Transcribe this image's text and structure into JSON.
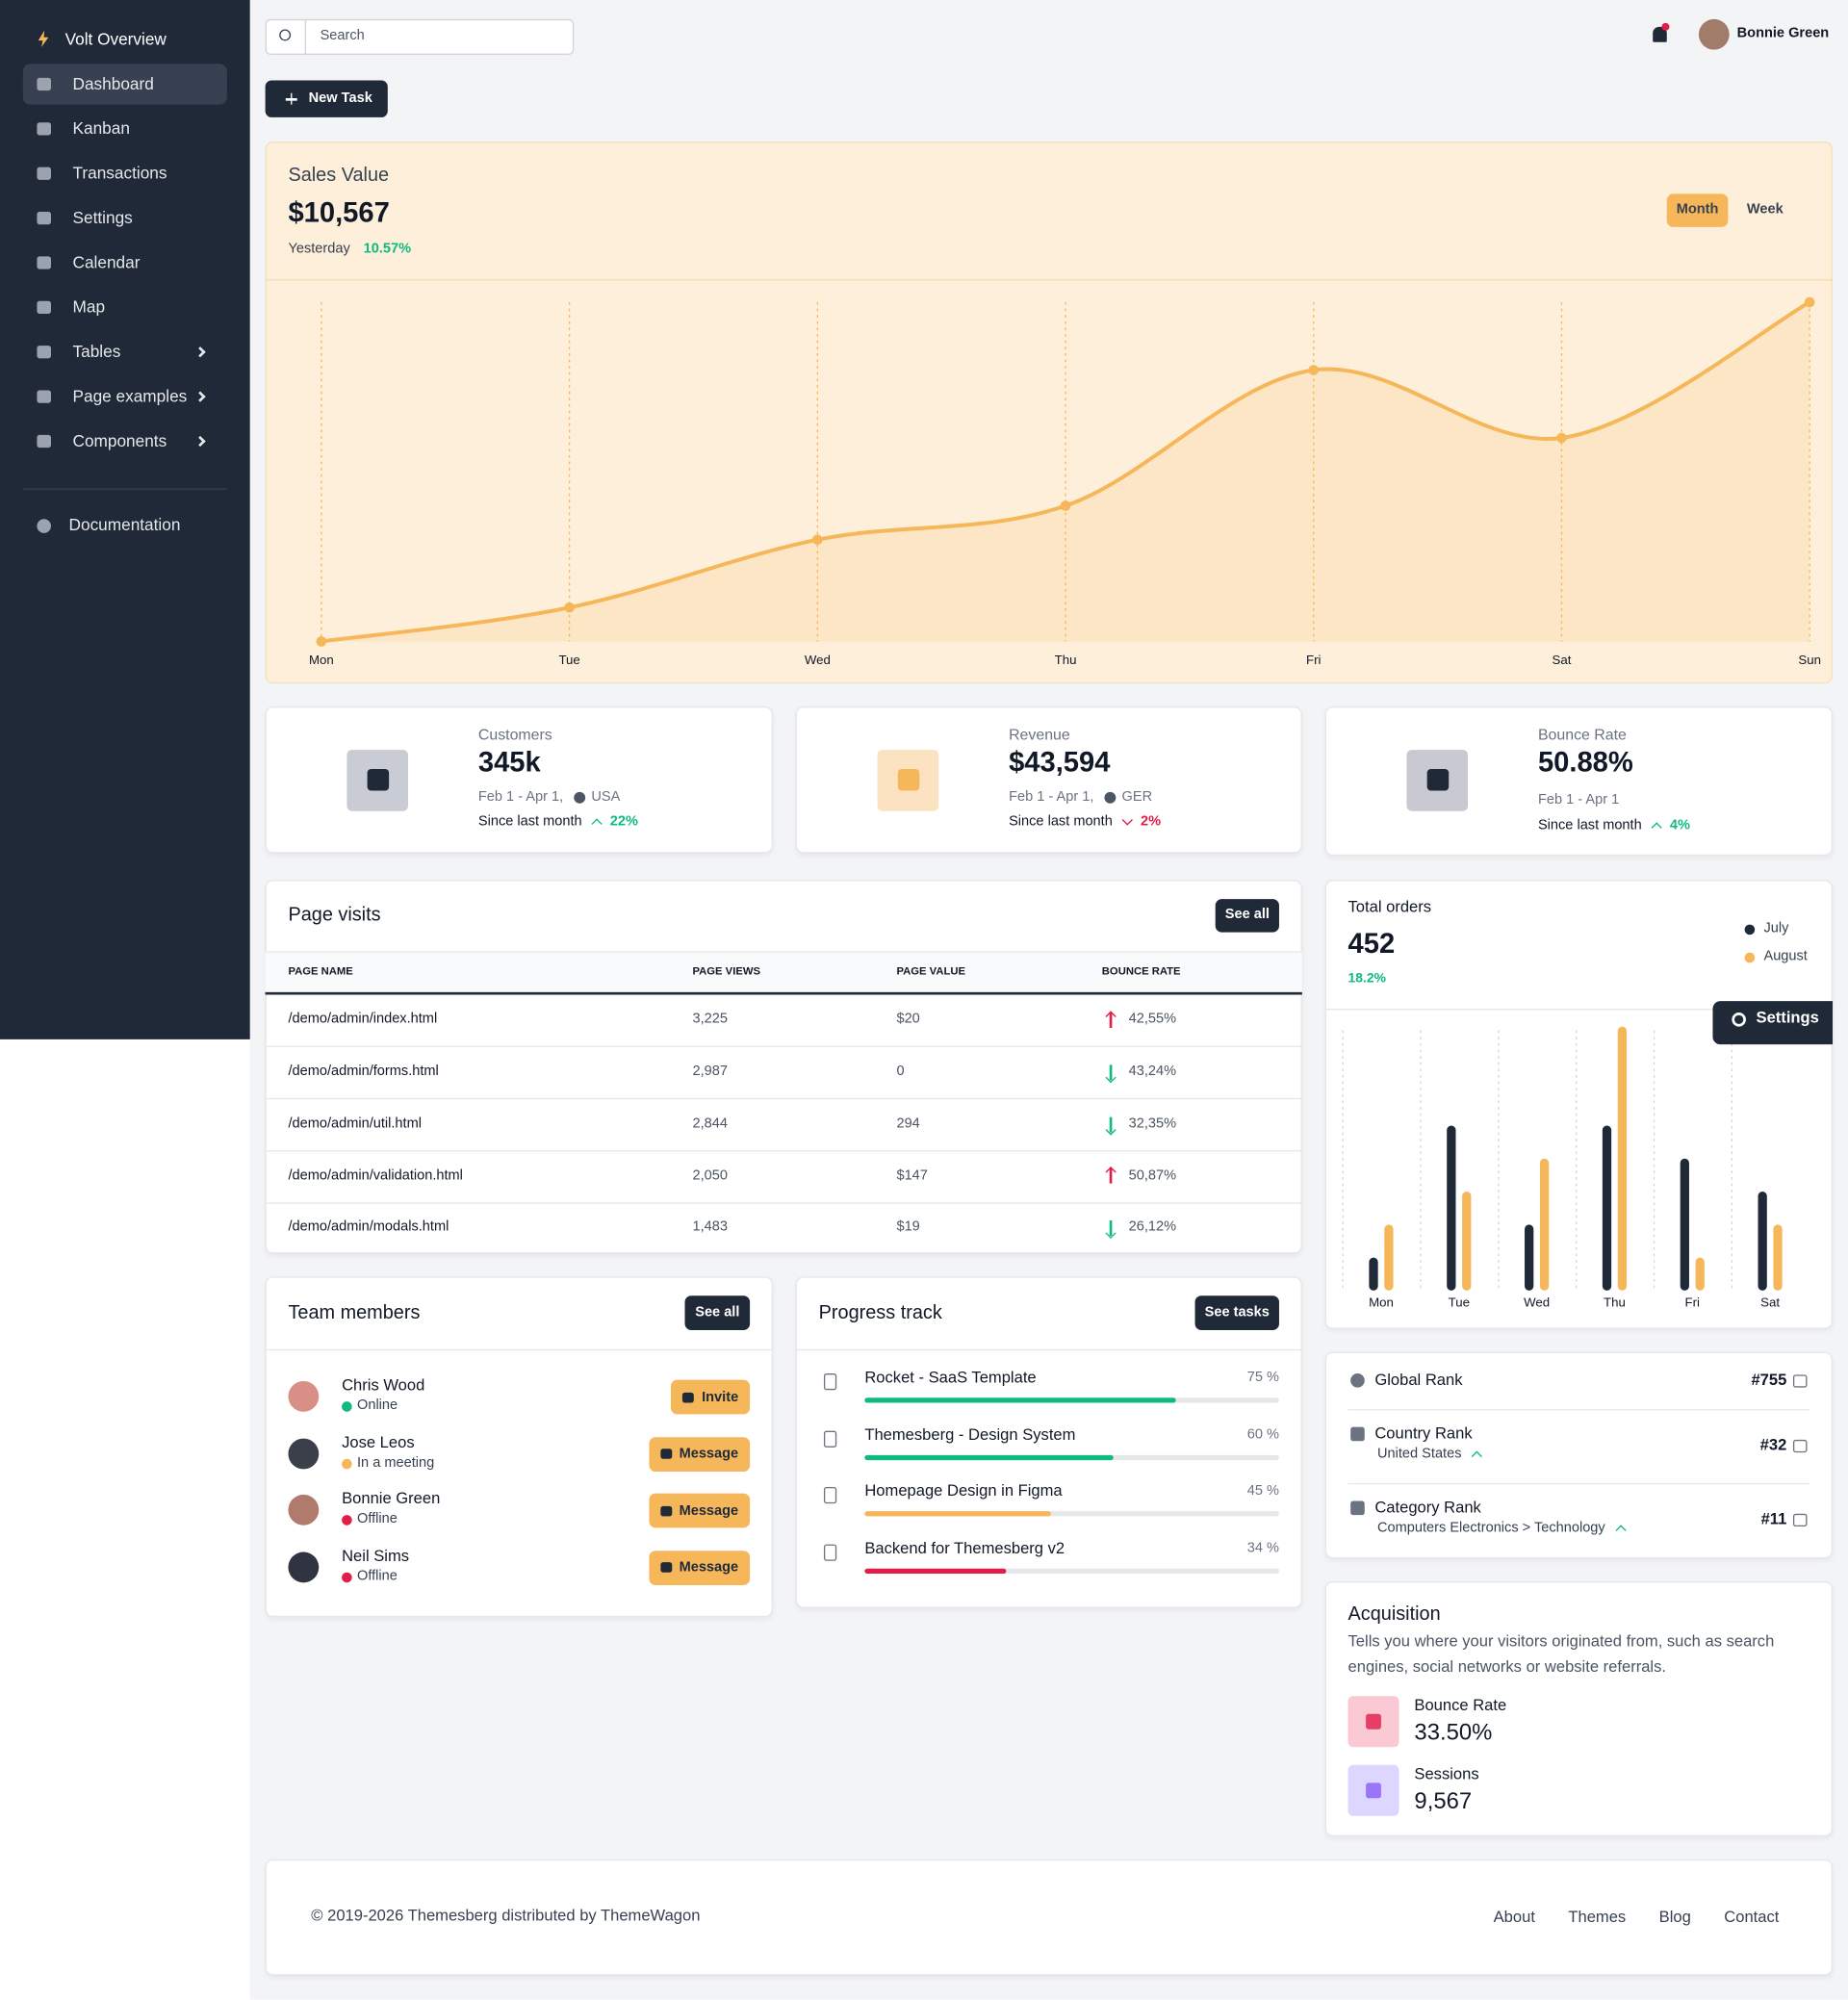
{
  "sidebar": {
    "brand": "Volt Overview",
    "items": [
      {
        "label": "Dashboard",
        "active": true
      },
      {
        "label": "Kanban"
      },
      {
        "label": "Transactions"
      },
      {
        "label": "Settings"
      },
      {
        "label": "Calendar"
      },
      {
        "label": "Map"
      },
      {
        "label": "Tables",
        "submenu": true
      },
      {
        "label": "Page examples",
        "submenu": true
      },
      {
        "label": "Components",
        "submenu": true
      }
    ],
    "documentation": "Documentation"
  },
  "header": {
    "search_placeholder": "Search",
    "user": "Bonnie Green",
    "new_task": "New Task"
  },
  "chart_data": [
    {
      "type": "line",
      "title": "Sales Value",
      "total": "$10,567",
      "period": "Yesterday",
      "change": "10.57%",
      "toggles": [
        "Month",
        "Week"
      ],
      "categories": [
        "Mon",
        "Tue",
        "Wed",
        "Thu",
        "Fri",
        "Sat",
        "Sun"
      ],
      "values": [
        0,
        10,
        30,
        40,
        80,
        60,
        100
      ],
      "color": "#f5b759",
      "ylim": [
        0,
        100
      ],
      "grid": true
    },
    {
      "type": "bar",
      "title": "Total orders",
      "total": 452,
      "change": "18.2%",
      "categories": [
        "Mon",
        "Tue",
        "Wed",
        "Thu",
        "Fri",
        "Sat"
      ],
      "series": [
        {
          "name": "July",
          "color": "#1f2937",
          "values": [
            1,
            5,
            2,
            5,
            4,
            3
          ]
        },
        {
          "name": "August",
          "color": "#f5b759",
          "values": [
            2,
            3,
            4,
            8,
            1,
            2
          ]
        }
      ],
      "ylim": [
        0,
        8
      ],
      "grid": true,
      "legend": "top-right"
    }
  ],
  "settings_button": "Settings",
  "stats": [
    {
      "label": "Customers",
      "value": "345k",
      "period": "Feb 1 - Apr 1,",
      "region": "USA",
      "since": "Since last month",
      "change": "22%",
      "trend": "up"
    },
    {
      "label": "Revenue",
      "value": "$43,594",
      "period": "Feb 1 - Apr 1,",
      "region": "GER",
      "since": "Since last month",
      "change": "2%",
      "trend": "down"
    },
    {
      "label": "Bounce Rate",
      "value": "50.88%",
      "period": "Feb 1 - Apr 1",
      "since": "Since last month",
      "change": "4%",
      "trend": "up"
    }
  ],
  "page_visits": {
    "title": "Page visits",
    "button": "See all",
    "columns": [
      "PAGE NAME",
      "PAGE VIEWS",
      "PAGE VALUE",
      "BOUNCE RATE"
    ],
    "rows": [
      [
        "/demo/admin/index.html",
        "3,225",
        "$20",
        "42,55%"
      ],
      [
        "/demo/admin/forms.html",
        "2,987",
        "0",
        "43,24%"
      ],
      [
        "/demo/admin/util.html",
        "2,844",
        "294",
        "32,35%"
      ],
      [
        "/demo/admin/validation.html",
        "2,050",
        "$147",
        "50,87%"
      ],
      [
        "/demo/admin/modals.html",
        "1,483",
        "$19",
        "26,12%"
      ]
    ],
    "trends": [
      "up",
      "down",
      "down",
      "up",
      "down"
    ]
  },
  "team": {
    "title": "Team members",
    "button": "See all",
    "members": [
      {
        "name": "Chris Wood",
        "status": "Online",
        "status_color": "#10b981",
        "action": "Invite"
      },
      {
        "name": "Jose Leos",
        "status": "In a meeting",
        "status_color": "#f5b759",
        "action": "Message"
      },
      {
        "name": "Bonnie Green",
        "status": "Offline",
        "status_color": "#e11d48",
        "action": "Message"
      },
      {
        "name": "Neil Sims",
        "status": "Offline",
        "status_color": "#e11d48",
        "action": "Message"
      }
    ]
  },
  "progress": {
    "title": "Progress track",
    "button": "See tasks",
    "tasks": [
      {
        "name": "Rocket - SaaS Template",
        "percent": 75,
        "percent_label": "75 %",
        "color": "#10b981"
      },
      {
        "name": "Themesberg - Design System",
        "percent": 60,
        "percent_label": "60 %",
        "color": "#10b981"
      },
      {
        "name": "Homepage Design in Figma",
        "percent": 45,
        "percent_label": "45 %",
        "color": "#f5b759"
      },
      {
        "name": "Backend for Themesberg v2",
        "percent": 34,
        "percent_label": "34 %",
        "color": "#e11d48"
      }
    ]
  },
  "ranks": [
    {
      "label": "Global Rank",
      "value": "#755"
    },
    {
      "label": "Country Rank",
      "sub": "United States",
      "value": "#32"
    },
    {
      "label": "Category Rank",
      "sub": "Computers Electronics > Technology",
      "value": "#11"
    }
  ],
  "acquisition": {
    "title": "Acquisition",
    "description": "Tells you where your visitors originated from, such as search engines, social networks or website referrals.",
    "items": [
      {
        "label": "Bounce Rate",
        "value": "33.50%"
      },
      {
        "label": "Sessions",
        "value": "9,567"
      }
    ]
  },
  "footer": {
    "copyright": "© 2019-2026 Themesberg distributed by ThemeWagon",
    "links": [
      "About",
      "Themes",
      "Blog",
      "Contact"
    ]
  }
}
